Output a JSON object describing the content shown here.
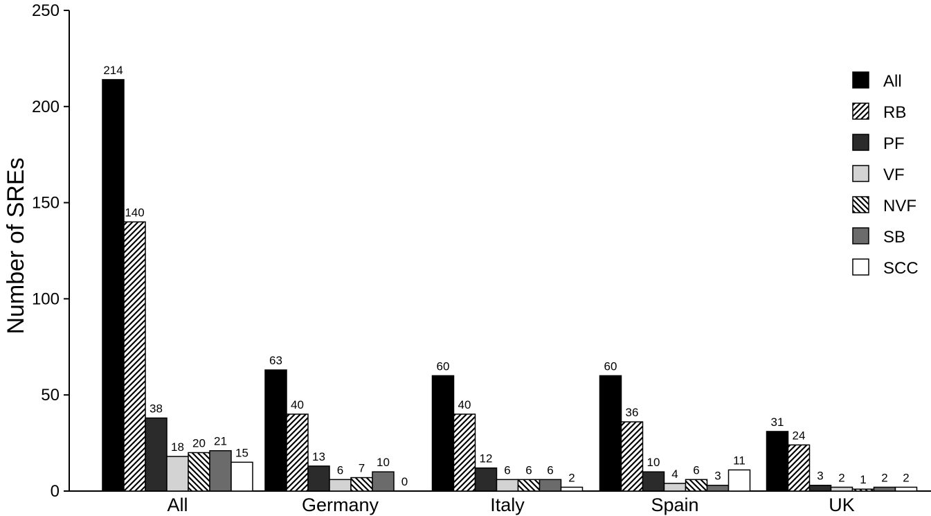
{
  "chart_data": {
    "type": "bar",
    "title": "",
    "xlabel": "",
    "ylabel": "Number of SREs",
    "ylim": [
      0,
      250
    ],
    "yticks": [
      0,
      50,
      100,
      150,
      200,
      250
    ],
    "grid": false,
    "legend_position": "top-right",
    "categories": [
      "All",
      "Germany",
      "Italy",
      "Spain",
      "UK"
    ],
    "series": [
      {
        "name": "All",
        "fill": "solid",
        "color": "#000000",
        "values": [
          214,
          63,
          60,
          60,
          31
        ]
      },
      {
        "name": "RB",
        "fill": "hatch-forward",
        "color": "#000000",
        "values": [
          140,
          40,
          40,
          36,
          24
        ]
      },
      {
        "name": "PF",
        "fill": "solid",
        "color": "#2b2b2b",
        "values": [
          38,
          13,
          12,
          10,
          3
        ]
      },
      {
        "name": "VF",
        "fill": "solid",
        "color": "#d3d3d3",
        "values": [
          18,
          6,
          6,
          4,
          2
        ]
      },
      {
        "name": "NVF",
        "fill": "hatch-back",
        "color": "#000000",
        "values": [
          20,
          7,
          6,
          6,
          1
        ]
      },
      {
        "name": "SB",
        "fill": "solid",
        "color": "#6b6b6b",
        "values": [
          21,
          10,
          6,
          3,
          2
        ]
      },
      {
        "name": "SCC",
        "fill": "solid",
        "color": "#ffffff",
        "values": [
          15,
          0,
          2,
          11,
          2
        ]
      }
    ]
  }
}
